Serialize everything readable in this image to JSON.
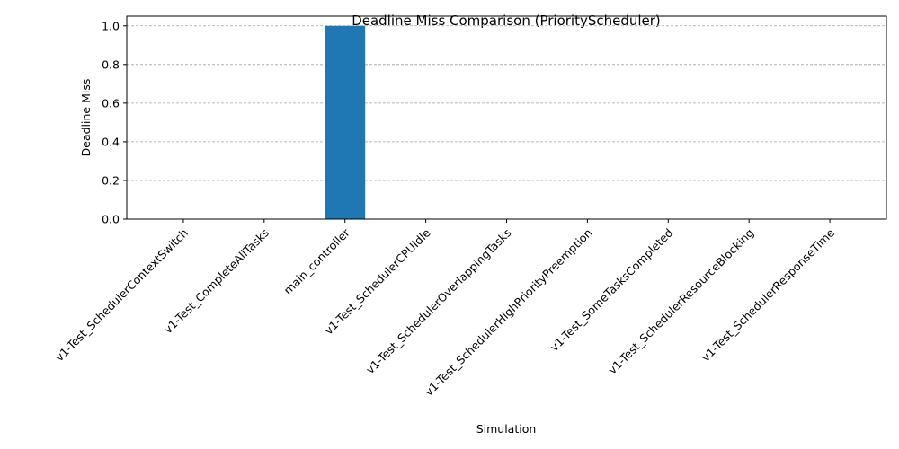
{
  "chart_data": {
    "type": "bar",
    "title": "Deadline Miss Comparison (PriorityScheduler)",
    "xlabel": "Simulation",
    "ylabel": "Deadline Miss",
    "categories": [
      "v1-Test_SchedulerContextSwitch",
      "v1-Test_CompleteAllTasks",
      "main_controller",
      "v1-Test_SchedulerCPUIdle",
      "v1-Test_SchedulerOverlappingTasks",
      "v1-Test_SchedulerHighPriorityPreemption",
      "v1-Test_SomeTasksCompleted",
      "v1-Test_SchedulerResourceBlocking",
      "v1-Test_SchedulerResponseTime"
    ],
    "values": [
      0,
      0,
      1,
      0,
      0,
      0,
      0,
      0,
      0
    ],
    "ylim": [
      0,
      1.05
    ],
    "yticks": [
      0.0,
      0.2,
      0.4,
      0.6,
      0.8,
      1.0
    ],
    "ytick_labels": [
      "0.0",
      "0.2",
      "0.4",
      "0.6",
      "0.8",
      "1.0"
    ],
    "grid": {
      "y": true,
      "x": false
    },
    "colors": {
      "bar": "#1f77b4",
      "grid": "#a0a0a0",
      "axis": "#000000"
    }
  }
}
